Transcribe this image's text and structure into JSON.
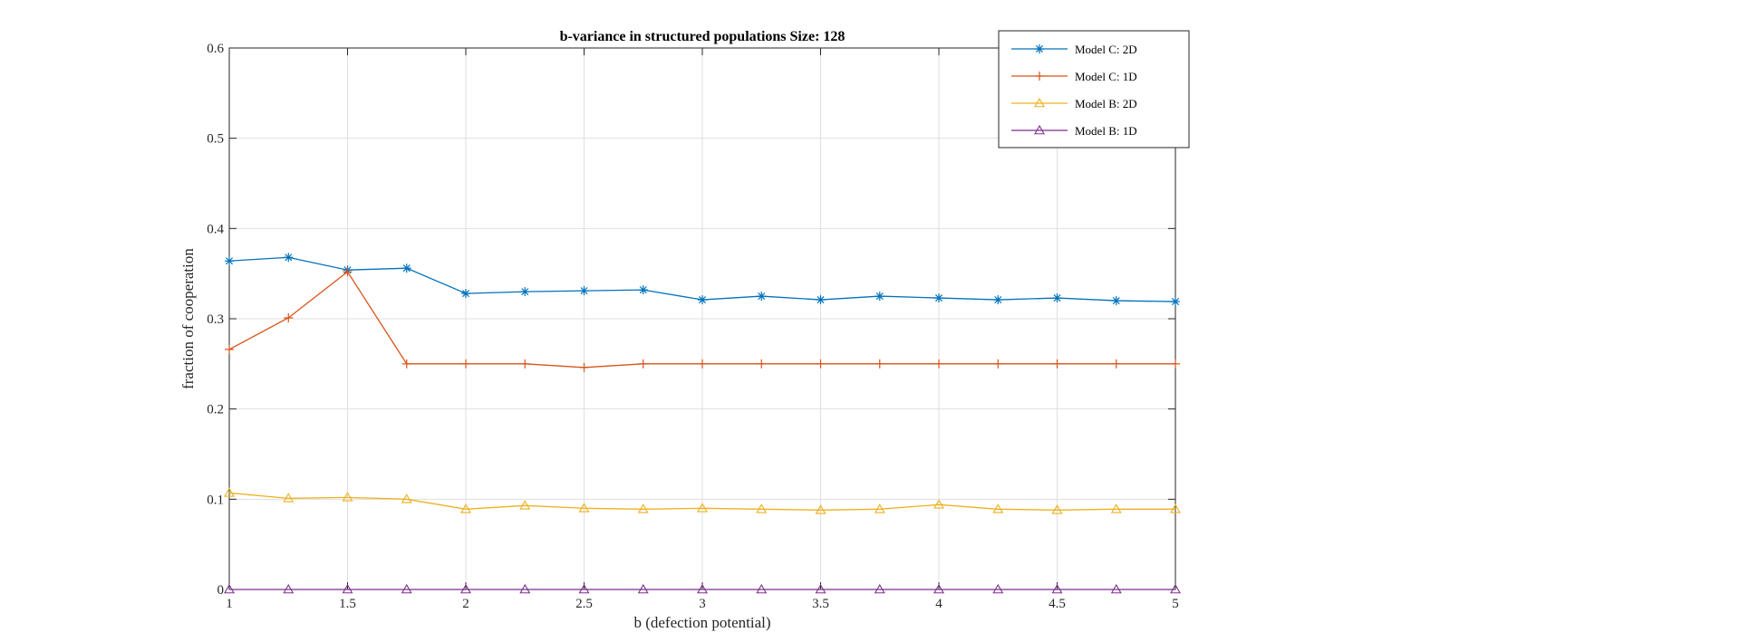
{
  "chart_data": {
    "type": "line",
    "title": "b-variance in structured populations Size: 128",
    "xlabel": "b (defection potential)",
    "ylabel": "fraction of cooperation",
    "xlim": [
      1,
      5
    ],
    "ylim": [
      0,
      0.6
    ],
    "xticks": [
      1,
      1.5,
      2,
      2.5,
      3,
      3.5,
      4,
      4.5,
      5
    ],
    "yticks": [
      0,
      0.1,
      0.2,
      0.3,
      0.4,
      0.5,
      0.6
    ],
    "xtick_labels": [
      "1",
      "1.5",
      "2",
      "2.5",
      "3",
      "3.5",
      "4",
      "4.5",
      "5"
    ],
    "ytick_labels": [
      "0",
      "0.1",
      "0.2",
      "0.3",
      "0.4",
      "0.5",
      "0.6"
    ],
    "grid": true,
    "legend_position": "top-right",
    "x": [
      1,
      1.25,
      1.5,
      1.75,
      2,
      2.25,
      2.5,
      2.75,
      3,
      3.25,
      3.5,
      3.75,
      4,
      4.25,
      4.5,
      4.75,
      5
    ],
    "series": [
      {
        "name": "Model C: 2D",
        "color": "#0072BD",
        "marker": "asterisk",
        "values": [
          0.364,
          0.368,
          0.354,
          0.356,
          0.328,
          0.33,
          0.331,
          0.332,
          0.321,
          0.325,
          0.321,
          0.325,
          0.323,
          0.321,
          0.323,
          0.32,
          0.319
        ]
      },
      {
        "name": "Model C: 1D",
        "color": "#D95319",
        "marker": "plus",
        "values": [
          0.266,
          0.301,
          0.352,
          0.25,
          0.25,
          0.25,
          0.246,
          0.25,
          0.25,
          0.25,
          0.25,
          0.25,
          0.25,
          0.25,
          0.25,
          0.25,
          0.25
        ]
      },
      {
        "name": "Model B: 2D",
        "color": "#EDB120",
        "marker": "triangle",
        "values": [
          0.107,
          0.101,
          0.102,
          0.1,
          0.089,
          0.093,
          0.09,
          0.089,
          0.09,
          0.089,
          0.088,
          0.089,
          0.094,
          0.089,
          0.088,
          0.089,
          0.089
        ]
      },
      {
        "name": "Model B: 1D",
        "color": "#7E2F8E",
        "marker": "triangle",
        "values": [
          0,
          0,
          0,
          0,
          0,
          0,
          0,
          0,
          0,
          0,
          0,
          0,
          0,
          0,
          0,
          0,
          0
        ]
      }
    ]
  }
}
